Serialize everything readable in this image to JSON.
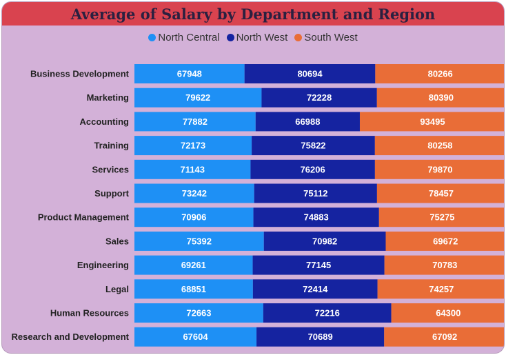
{
  "chart_data": {
    "type": "bar",
    "orientation": "horizontal",
    "stacked": "percent",
    "title": "Average of Salary by Department and Region",
    "legend_position": "top",
    "categories": [
      "Business Development",
      "Marketing",
      "Accounting",
      "Training",
      "Services",
      "Support",
      "Product Management",
      "Sales",
      "Engineering",
      "Legal",
      "Human Resources",
      "Research and Development"
    ],
    "series": [
      {
        "name": "North Central",
        "color": "#1e90f5",
        "values": [
          67948,
          79622,
          77882,
          72173,
          71143,
          73242,
          70906,
          75392,
          69261,
          68851,
          72663,
          67604
        ]
      },
      {
        "name": "North West",
        "color": "#1523a0",
        "values": [
          80694,
          72228,
          66988,
          75822,
          76206,
          75112,
          74883,
          70982,
          77145,
          72414,
          72216,
          70689
        ]
      },
      {
        "name": "South West",
        "color": "#e96d37",
        "values": [
          80266,
          80390,
          93495,
          80258,
          79870,
          78457,
          75275,
          69672,
          70783,
          74257,
          64300,
          67092
        ]
      }
    ]
  }
}
